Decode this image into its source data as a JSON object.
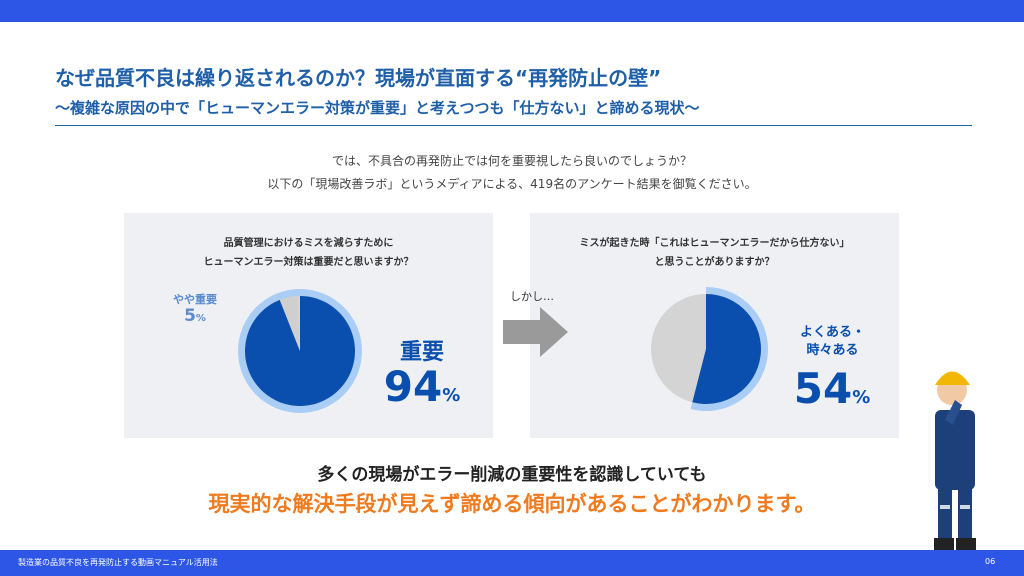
{
  "header": {
    "title": "なぜ品質不良は繰り返されるのか？現場が直面する“再発防止の壁”",
    "subtitle": "〜複雑な原因の中で「ヒューマンエラー対策が重要」と考えつつも「仕方ない」と諦める現状〜"
  },
  "intro": [
    "では、不具合の再発防止では何を重要視したら良いのでしょうか？",
    "以下の「現場改善ラボ」というメディアによる、419名のアンケート結果を御覧ください。"
  ],
  "chart_data": [
    {
      "type": "pie",
      "question": [
        "品質管理におけるミスを減らすために",
        "ヒューマンエラー対策は重要だと思いますか？"
      ],
      "categories": [
        "重要",
        "やや重要"
      ],
      "values": [
        94,
        5
      ],
      "unit": "%",
      "colors": [
        "#0a4fae",
        "#cfcfcf"
      ]
    },
    {
      "type": "pie",
      "question": [
        "ミスが起きた時「これはヒューマンエラーだから仕方ない」",
        "と思うことがありますか？"
      ],
      "categories": [
        "よくある・時々ある"
      ],
      "values": [
        54
      ],
      "unit": "%",
      "colors": [
        "#0a4fae"
      ]
    }
  ],
  "transition": "しかし…",
  "conclusion": [
    "多くの現場がエラー削減の重要性を認識していても",
    "現実的な解決手段が見えず諦める傾向があることがわかります。"
  ],
  "footer": {
    "text": "製造業の品質不良を再発防止する動画マニュアル活用法",
    "page": "06"
  }
}
